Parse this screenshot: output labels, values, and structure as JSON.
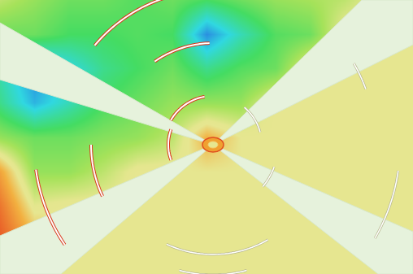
{
  "chart_data": {
    "type": "heatmap",
    "x": [
      0,
      1,
      2,
      3,
      4,
      5,
      6,
      7,
      8,
      9,
      10,
      11,
      12
    ],
    "y": [
      0,
      1,
      2,
      3,
      4,
      5,
      6,
      7,
      8
    ],
    "z": [
      [
        0.55,
        0.5,
        0.45,
        0.45,
        0.42,
        0.45,
        0.4,
        0.45,
        0.5,
        0.52,
        0.55,
        0.62,
        0.62
      ],
      [
        0.45,
        0.45,
        0.4,
        0.4,
        0.42,
        0.4,
        0.15,
        0.3,
        0.42,
        0.45,
        0.62,
        0.62,
        0.62
      ],
      [
        0.3,
        0.15,
        0.25,
        0.35,
        0.4,
        0.45,
        0.35,
        0.42,
        0.45,
        0.62,
        0.62,
        0.62,
        0.62
      ],
      [
        0.35,
        0.2,
        0.3,
        0.4,
        0.45,
        0.5,
        0.5,
        0.5,
        0.62,
        0.62,
        0.62,
        0.62,
        0.62
      ],
      [
        0.5,
        0.45,
        0.45,
        0.48,
        0.5,
        0.55,
        0.7,
        0.62,
        0.62,
        0.62,
        0.62,
        0.62,
        0.62
      ],
      [
        0.72,
        0.5,
        0.5,
        0.55,
        0.62,
        0.62,
        0.62,
        0.62,
        0.62,
        0.62,
        0.62,
        0.62,
        0.62
      ],
      [
        0.8,
        0.6,
        0.62,
        0.62,
        0.62,
        0.62,
        0.62,
        0.62,
        0.62,
        0.62,
        0.62,
        0.62,
        0.62
      ],
      [
        0.85,
        0.7,
        0.62,
        0.62,
        0.62,
        0.62,
        0.62,
        0.62,
        0.62,
        0.62,
        0.62,
        0.62,
        0.62
      ],
      [
        0.8,
        0.62,
        0.62,
        0.62,
        0.62,
        0.62,
        0.62,
        0.62,
        0.62,
        0.62,
        0.62,
        0.62,
        0.62
      ]
    ],
    "xlim": [
      0,
      12
    ],
    "ylim": [
      8,
      0
    ],
    "zlim": [
      0,
      1
    ],
    "tick_labels": false,
    "grid": false
  }
}
